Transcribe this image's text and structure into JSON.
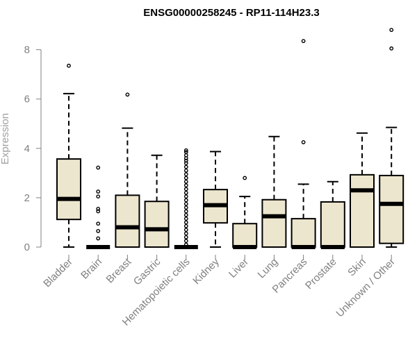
{
  "chart_data": {
    "type": "boxplot",
    "title": "ENSG00000258245 - RP11-114H23.3",
    "xlabel": "",
    "ylabel": "Expression",
    "ylim": [
      0,
      8.9
    ],
    "yticks": [
      0,
      2,
      4,
      6,
      8
    ],
    "grid": false,
    "legend": "none",
    "box_color": "#ede6ce",
    "categories": [
      "Bladder",
      "Brain",
      "Breast",
      "Gastric",
      "Hematopoietic cells",
      "Kidney",
      "Liver",
      "Lung",
      "Pancreas",
      "Prostate",
      "Skin",
      "Unknown / Other"
    ],
    "boxes": [
      {
        "min": 0,
        "q1": 1.12,
        "median": 1.95,
        "q3": 3.57,
        "max": 6.22,
        "outliers": [
          7.35
        ]
      },
      {
        "min": 0,
        "q1": 0,
        "median": 0,
        "q3": 0,
        "max": 0,
        "outliers": [
          0.35,
          0.65,
          0.95,
          1.45,
          1.55,
          2.05,
          2.25,
          3.22
        ]
      },
      {
        "min": 0,
        "q1": 0,
        "median": 0.8,
        "q3": 2.1,
        "max": 4.82,
        "outliers": [
          6.18
        ]
      },
      {
        "min": 0,
        "q1": 0,
        "median": 0.72,
        "q3": 1.85,
        "max": 3.72,
        "outliers": []
      },
      {
        "min": 0,
        "q1": 0,
        "median": 0,
        "q3": 0,
        "max": 0,
        "outliers": [
          0.1,
          0.25,
          0.4,
          0.55,
          0.7,
          0.85,
          1.0,
          1.15,
          1.3,
          1.45,
          1.6,
          1.75,
          1.9,
          2.05,
          2.2,
          2.35,
          2.5,
          2.65,
          2.8,
          2.95,
          3.1,
          3.25,
          3.4,
          3.5,
          3.6,
          3.72,
          3.85,
          3.92
        ]
      },
      {
        "min": 0,
        "q1": 0.98,
        "median": 1.7,
        "q3": 2.33,
        "max": 3.87,
        "outliers": []
      },
      {
        "min": 0,
        "q1": 0,
        "median": 0,
        "q3": 0.95,
        "max": 2.05,
        "outliers": [
          2.8
        ]
      },
      {
        "min": 0,
        "q1": 0,
        "median": 1.25,
        "q3": 1.92,
        "max": 4.48,
        "outliers": []
      },
      {
        "min": 0,
        "q1": 0,
        "median": 0,
        "q3": 1.15,
        "max": 2.55,
        "outliers": [
          4.25,
          8.35
        ]
      },
      {
        "min": 0,
        "q1": 0,
        "median": 0,
        "q3": 1.83,
        "max": 2.65,
        "outliers": []
      },
      {
        "min": 0,
        "q1": 0,
        "median": 2.3,
        "q3": 2.93,
        "max": 4.62,
        "outliers": []
      },
      {
        "min": 0,
        "q1": 0.15,
        "median": 1.75,
        "q3": 2.9,
        "max": 4.85,
        "outliers": [
          8.05,
          8.8
        ]
      }
    ]
  }
}
